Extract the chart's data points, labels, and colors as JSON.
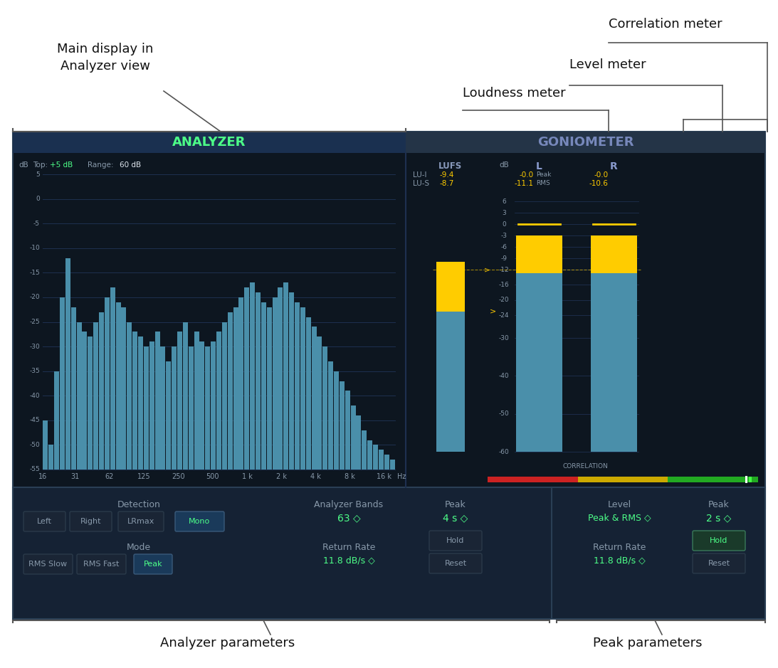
{
  "bg_dark": "#0d1620",
  "bg_panel": "#152234",
  "bg_header_analyzer": "#1a3050",
  "bg_header_gonio": "#243447",
  "bg_controls": "#152234",
  "text_white": "#e0e8f0",
  "text_green": "#4dff88",
  "text_yellow": "#ffcc00",
  "text_gray": "#8899aa",
  "text_blue_gray": "#8899cc",
  "grid_color": "#1e3050",
  "bar_color": "#4a8faa",
  "analyzer_bars": [
    10,
    5,
    20,
    35,
    43,
    33,
    30,
    28,
    27,
    30,
    32,
    35,
    37,
    34,
    33,
    30,
    28,
    27,
    25,
    26,
    28,
    25,
    22,
    25,
    28,
    30,
    25,
    28,
    26,
    25,
    26,
    28,
    30,
    32,
    33,
    35,
    37,
    38,
    36,
    34,
    33,
    35,
    37,
    38,
    36,
    34,
    33,
    31,
    29,
    27,
    25,
    22,
    20,
    18,
    16,
    13,
    11,
    8,
    6,
    5,
    4,
    3,
    2
  ],
  "freq_labels": [
    "16",
    "31",
    "62",
    "125",
    "250",
    "500",
    "1 k",
    "2 k",
    "4 k",
    "8 k",
    "16 k"
  ],
  "db_labels_analyzer": [
    5,
    0,
    -5,
    -10,
    -15,
    -20,
    -25,
    -30,
    -35,
    -40,
    -45,
    -50,
    -55
  ],
  "db_labels_meter": [
    6,
    3,
    0,
    -3,
    -6,
    -9,
    -12,
    -16,
    -20,
    -24,
    -30,
    -40,
    -50,
    -60
  ],
  "lufs_lui": "-9.4",
  "lufs_lus": "-8.7",
  "level_l_peak": "-0.0",
  "level_r_peak": "-0.0",
  "level_l_rms": "-11.1",
  "level_r_rms": "-10.6",
  "detection_btns": [
    "Left",
    "Right",
    "LRmax",
    "Mono"
  ],
  "detection_active": 3,
  "mode_btns": [
    "RMS Slow",
    "RMS Fast",
    "Peak"
  ],
  "mode_active": 2,
  "analyzer_bands": "63",
  "peak_hold_s": "4 s",
  "return_rate": "11.8 dB/s",
  "level_mode": "Peak & RMS",
  "peak_hold_s2": "2 s",
  "return_rate2": "11.8 dB/s"
}
